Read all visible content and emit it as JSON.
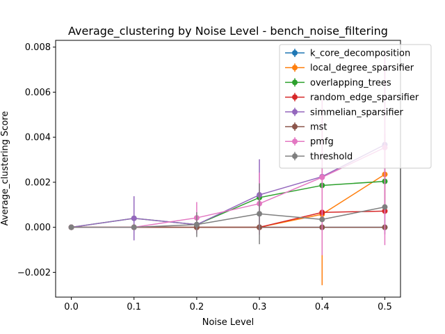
{
  "chart_data": {
    "type": "line",
    "title": "Average_clustering by Noise Level - bench_noise_filtering",
    "xlabel": "Noise Level",
    "ylabel": "Average_clustering Score",
    "x": [
      0.0,
      0.1,
      0.2,
      0.3,
      0.4,
      0.5
    ],
    "x_tick_labels": [
      "0.0",
      "0.1",
      "0.2",
      "0.3",
      "0.4",
      "0.5"
    ],
    "xlim": [
      -0.025,
      0.525
    ],
    "ylim": [
      -0.0031,
      0.0083
    ],
    "y_ticks": [
      -0.002,
      0.0,
      0.002,
      0.004,
      0.006,
      0.008
    ],
    "y_tick_labels": [
      "−0.002",
      "0.000",
      "0.002",
      "0.004",
      "0.006",
      "0.008"
    ],
    "grid": false,
    "legend_position": "upper right",
    "series": [
      {
        "name": "k_core_decomposition",
        "color": "#1f77b4",
        "values": [
          0,
          0,
          0,
          0,
          0,
          0
        ],
        "errors": [
          0,
          0,
          0,
          0,
          0,
          0
        ]
      },
      {
        "name": "local_degree_sparsifier",
        "color": "#ff7f0e",
        "values": [
          0,
          0,
          0,
          0,
          0.00058,
          0.00235
        ],
        "errors": [
          0,
          0,
          0,
          0,
          0.00315,
          0.0018
        ]
      },
      {
        "name": "overlapping_trees",
        "color": "#2ca02c",
        "values": [
          0,
          0.0004,
          0.00012,
          0.00132,
          0.00186,
          0.00204
        ],
        "errors": [
          0,
          0,
          0,
          0,
          0,
          0
        ]
      },
      {
        "name": "random_edge_sparsifier",
        "color": "#d62728",
        "values": [
          0,
          0,
          0,
          0,
          0.00066,
          0.00072
        ],
        "errors": [
          0,
          0,
          0,
          0,
          0,
          0
        ]
      },
      {
        "name": "simmelian_sparsifier",
        "color": "#9467bd",
        "values": [
          0,
          0.0004,
          0.00012,
          0.00144,
          0.00225,
          0.00367
        ],
        "errors": [
          0,
          0.00098,
          0,
          0.00158,
          0,
          0.00398
        ]
      },
      {
        "name": "mst",
        "color": "#8c564b",
        "values": [
          0,
          0,
          0,
          0,
          0,
          0
        ],
        "errors": [
          0,
          0,
          0,
          0,
          0,
          0
        ]
      },
      {
        "name": "pmfg",
        "color": "#e377c2",
        "values": [
          0,
          0,
          0.00042,
          0.00105,
          0.00222,
          0.00354
        ],
        "errors": [
          0,
          0,
          0.0007,
          0.00138,
          0.00346,
          0.00433
        ]
      },
      {
        "name": "threshold",
        "color": "#7f7f7f",
        "values": [
          0,
          0,
          0.00012,
          0.0006,
          0.00035,
          0.0009
        ],
        "errors": [
          0,
          0,
          0.00055,
          0.00135,
          0,
          0
        ]
      }
    ]
  }
}
